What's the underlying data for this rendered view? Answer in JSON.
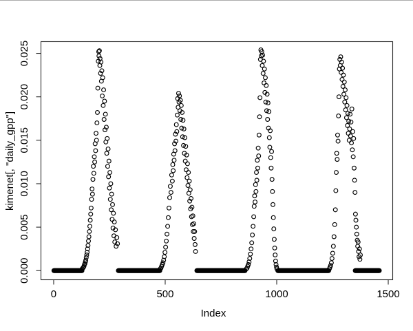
{
  "figure": {
    "background": "#ffffff",
    "top_border_color": "#ababab"
  },
  "chart_data": {
    "type": "scatter",
    "title": "",
    "xlabel": "Index",
    "ylabel": "kimenet[, \"daily_gpp\"]",
    "point_color": "#000000",
    "marker": {
      "shape": "open-circle",
      "radius_px": 2.9,
      "stroke_px": 1.15
    },
    "grid": false,
    "x_range_shown": [
      -57,
      1520
    ],
    "y_range_shown": [
      -0.00105,
      0.02635
    ],
    "x_ticks": {
      "values": [
        0,
        500,
        1000,
        1500
      ],
      "labels": [
        "0",
        "500",
        "1000",
        "1500"
      ]
    },
    "y_ticks": {
      "values": [
        0,
        0.005,
        0.01,
        0.015,
        0.02,
        0.025
      ],
      "labels": [
        "0.000",
        "0.005",
        "0.010",
        "0.015",
        "0.020",
        "0.025"
      ]
    },
    "zero_runs": [
      {
        "x_start": 1,
        "x_end": 128,
        "y": 0,
        "step": 2
      },
      {
        "x_start": 290,
        "x_end": 476,
        "y": 0,
        "step": 2
      },
      {
        "x_start": 642,
        "x_end": 858,
        "y": 0,
        "step": 2
      },
      {
        "x_start": 1005,
        "x_end": 1234,
        "y": 0,
        "step": 2
      },
      {
        "x_start": 1352,
        "x_end": 1461,
        "y": 0,
        "step": 2
      }
    ],
    "points": [
      [
        128,
        0.0002
      ],
      [
        131,
        0.0003
      ],
      [
        134,
        0.0004
      ],
      [
        136,
        0.0005
      ],
      [
        138,
        0.0007
      ],
      [
        140,
        0.0008
      ],
      [
        142,
        0.001
      ],
      [
        144,
        0.0012
      ],
      [
        146,
        0.0015
      ],
      [
        148,
        0.0018
      ],
      [
        150,
        0.0021
      ],
      [
        152,
        0.0025
      ],
      [
        154,
        0.0029
      ],
      [
        156,
        0.0034
      ],
      [
        158,
        0.0039
      ],
      [
        160,
        0.0045
      ],
      [
        162,
        0.0051
      ],
      [
        164,
        0.0058
      ],
      [
        166,
        0.0065
      ],
      [
        168,
        0.0072
      ],
      [
        170,
        0.0082
      ],
      [
        172,
        0.0094
      ],
      [
        174,
        0.0088
      ],
      [
        176,
        0.0105
      ],
      [
        178,
        0.012
      ],
      [
        180,
        0.0112
      ],
      [
        182,
        0.0131
      ],
      [
        184,
        0.0125
      ],
      [
        186,
        0.0146
      ],
      [
        188,
        0.0138
      ],
      [
        190,
        0.0158
      ],
      [
        192,
        0.015
      ],
      [
        194,
        0.017
      ],
      [
        196,
        0.0182
      ],
      [
        198,
        0.021
      ],
      [
        200,
        0.0241
      ],
      [
        202,
        0.0252
      ],
      [
        203,
        0.0247
      ],
      [
        205,
        0.0253
      ],
      [
        207,
        0.0236
      ],
      [
        208,
        0.0244
      ],
      [
        210,
        0.0227
      ],
      [
        212,
        0.024
      ],
      [
        214,
        0.0218
      ],
      [
        216,
        0.023
      ],
      [
        218,
        0.0201
      ],
      [
        220,
        0.0222
      ],
      [
        222,
        0.019
      ],
      [
        224,
        0.0208
      ],
      [
        226,
        0.0174
      ],
      [
        228,
        0.0195
      ],
      [
        230,
        0.0162
      ],
      [
        232,
        0.018
      ],
      [
        234,
        0.0148
      ],
      [
        236,
        0.0165
      ],
      [
        238,
        0.0135
      ],
      [
        240,
        0.0152
      ],
      [
        242,
        0.012
      ],
      [
        244,
        0.014
      ],
      [
        246,
        0.0108
      ],
      [
        248,
        0.0126
      ],
      [
        250,
        0.0095
      ],
      [
        252,
        0.0113
      ],
      [
        254,
        0.0082
      ],
      [
        256,
        0.01
      ],
      [
        258,
        0.007
      ],
      [
        260,
        0.0088
      ],
      [
        262,
        0.0059
      ],
      [
        264,
        0.0076
      ],
      [
        266,
        0.0049
      ],
      [
        268,
        0.0066
      ],
      [
        270,
        0.004
      ],
      [
        272,
        0.0056
      ],
      [
        274,
        0.0033
      ],
      [
        277,
        0.0047
      ],
      [
        280,
        0.0028
      ],
      [
        283,
        0.0038
      ],
      [
        286,
        0.0031
      ],
      [
        478,
        0.0002
      ],
      [
        481,
        0.0003
      ],
      [
        484,
        0.0005
      ],
      [
        487,
        0.0007
      ],
      [
        490,
        0.0009
      ],
      [
        493,
        0.0012
      ],
      [
        496,
        0.0016
      ],
      [
        499,
        0.0021
      ],
      [
        502,
        0.0027
      ],
      [
        505,
        0.0034
      ],
      [
        508,
        0.0042
      ],
      [
        511,
        0.0051
      ],
      [
        514,
        0.0061
      ],
      [
        517,
        0.0072
      ],
      [
        520,
        0.0084
      ],
      [
        523,
        0.0097
      ],
      [
        526,
        0.009
      ],
      [
        529,
        0.011
      ],
      [
        532,
        0.0103
      ],
      [
        534,
        0.0122
      ],
      [
        536,
        0.0115
      ],
      [
        538,
        0.0134
      ],
      [
        540,
        0.0127
      ],
      [
        542,
        0.0146
      ],
      [
        544,
        0.0138
      ],
      [
        546,
        0.0157
      ],
      [
        548,
        0.0149
      ],
      [
        550,
        0.0168
      ],
      [
        552,
        0.016
      ],
      [
        554,
        0.0179
      ],
      [
        556,
        0.0198
      ],
      [
        558,
        0.0188
      ],
      [
        560,
        0.0204
      ],
      [
        562,
        0.0194
      ],
      [
        564,
        0.0201
      ],
      [
        566,
        0.0184
      ],
      [
        568,
        0.0196
      ],
      [
        570,
        0.0174
      ],
      [
        572,
        0.019
      ],
      [
        574,
        0.0164
      ],
      [
        576,
        0.0182
      ],
      [
        578,
        0.0154
      ],
      [
        580,
        0.0173
      ],
      [
        582,
        0.0144
      ],
      [
        584,
        0.0163
      ],
      [
        586,
        0.0135
      ],
      [
        588,
        0.0153
      ],
      [
        590,
        0.0126
      ],
      [
        592,
        0.0143
      ],
      [
        594,
        0.0116
      ],
      [
        596,
        0.0133
      ],
      [
        598,
        0.0107
      ],
      [
        600,
        0.0123
      ],
      [
        602,
        0.0098
      ],
      [
        604,
        0.0113
      ],
      [
        606,
        0.0089
      ],
      [
        608,
        0.0103
      ],
      [
        610,
        0.008
      ],
      [
        612,
        0.0093
      ],
      [
        614,
        0.0071
      ],
      [
        616,
        0.0083
      ],
      [
        618,
        0.0062
      ],
      [
        620,
        0.0073
      ],
      [
        622,
        0.0053
      ],
      [
        624,
        0.0063
      ],
      [
        626,
        0.0045
      ],
      [
        628,
        0.0054
      ],
      [
        630,
        0.0037
      ],
      [
        632,
        0.0045
      ],
      [
        634,
        0.003
      ],
      [
        636,
        0.0022
      ],
      [
        864,
        0.0002
      ],
      [
        867,
        0.0003
      ],
      [
        870,
        0.0005
      ],
      [
        873,
        0.0007
      ],
      [
        876,
        0.001
      ],
      [
        879,
        0.0014
      ],
      [
        882,
        0.0019
      ],
      [
        885,
        0.0025
      ],
      [
        888,
        0.0032
      ],
      [
        891,
        0.0041
      ],
      [
        894,
        0.0051
      ],
      [
        897,
        0.0062
      ],
      [
        899,
        0.0074
      ],
      [
        901,
        0.0086
      ],
      [
        903,
        0.0079
      ],
      [
        905,
        0.0099
      ],
      [
        907,
        0.0091
      ],
      [
        909,
        0.0113
      ],
      [
        911,
        0.0104
      ],
      [
        913,
        0.0127
      ],
      [
        915,
        0.0118
      ],
      [
        917,
        0.0141
      ],
      [
        919,
        0.0132
      ],
      [
        921,
        0.0156
      ],
      [
        923,
        0.0177
      ],
      [
        925,
        0.0199
      ],
      [
        927,
        0.0243
      ],
      [
        929,
        0.0254
      ],
      [
        931,
        0.0247
      ],
      [
        933,
        0.0252
      ],
      [
        935,
        0.0236
      ],
      [
        937,
        0.0248
      ],
      [
        939,
        0.0227
      ],
      [
        941,
        0.0241
      ],
      [
        943,
        0.0216
      ],
      [
        945,
        0.0232
      ],
      [
        947,
        0.0205
      ],
      [
        949,
        0.0222
      ],
      [
        951,
        0.0194
      ],
      [
        953,
        0.0213
      ],
      [
        955,
        0.0184
      ],
      [
        957,
        0.0203
      ],
      [
        959,
        0.0174
      ],
      [
        961,
        0.0193
      ],
      [
        963,
        0.0164
      ],
      [
        965,
        0.0183
      ],
      [
        967,
        0.0153
      ],
      [
        969,
        0.0142
      ],
      [
        971,
        0.0161
      ],
      [
        973,
        0.013
      ],
      [
        975,
        0.0118
      ],
      [
        977,
        0.0137
      ],
      [
        979,
        0.0105
      ],
      [
        981,
        0.0091
      ],
      [
        983,
        0.0076
      ],
      [
        985,
        0.0061
      ],
      [
        987,
        0.0048
      ],
      [
        989,
        0.0036
      ],
      [
        991,
        0.0026
      ],
      [
        993,
        0.0018
      ],
      [
        995,
        0.0011
      ],
      [
        997,
        0.0007
      ],
      [
        999,
        0.0004
      ],
      [
        1001,
        0.0002
      ],
      [
        1236,
        0.0002
      ],
      [
        1239,
        0.0004
      ],
      [
        1242,
        0.0006
      ],
      [
        1245,
        0.0009
      ],
      [
        1248,
        0.0014
      ],
      [
        1251,
        0.002
      ],
      [
        1254,
        0.0028
      ],
      [
        1257,
        0.0039
      ],
      [
        1260,
        0.0053
      ],
      [
        1263,
        0.007
      ],
      [
        1265,
        0.0092
      ],
      [
        1267,
        0.0113
      ],
      [
        1269,
        0.0135
      ],
      [
        1271,
        0.0128
      ],
      [
        1273,
        0.0156
      ],
      [
        1275,
        0.0149
      ],
      [
        1277,
        0.0178
      ],
      [
        1279,
        0.02
      ],
      [
        1281,
        0.0232
      ],
      [
        1283,
        0.0243
      ],
      [
        1285,
        0.0236
      ],
      [
        1287,
        0.0246
      ],
      [
        1289,
        0.0228
      ],
      [
        1291,
        0.024
      ],
      [
        1293,
        0.022
      ],
      [
        1295,
        0.0233
      ],
      [
        1297,
        0.0212
      ],
      [
        1299,
        0.0225
      ],
      [
        1301,
        0.0203
      ],
      [
        1303,
        0.0217
      ],
      [
        1305,
        0.0194
      ],
      [
        1307,
        0.0208
      ],
      [
        1309,
        0.0185
      ],
      [
        1311,
        0.0199
      ],
      [
        1313,
        0.0176
      ],
      [
        1315,
        0.019
      ],
      [
        1317,
        0.0167
      ],
      [
        1319,
        0.0181
      ],
      [
        1321,
        0.0158
      ],
      [
        1323,
        0.0172
      ],
      [
        1325,
        0.015
      ],
      [
        1327,
        0.0163
      ],
      [
        1329,
        0.018
      ],
      [
        1331,
        0.0155
      ],
      [
        1333,
        0.0171
      ],
      [
        1335,
        0.0147
      ],
      [
        1337,
        0.0186
      ],
      [
        1339,
        0.0139
      ],
      [
        1341,
        0.016
      ],
      [
        1343,
        0.0131
      ],
      [
        1345,
        0.0152
      ],
      [
        1347,
        0.0118
      ],
      [
        1349,
        0.0104
      ],
      [
        1351,
        0.009
      ],
      [
        1353,
        0.0065
      ],
      [
        1355,
        0.0058
      ],
      [
        1357,
        0.005
      ],
      [
        1359,
        0.0042
      ],
      [
        1361,
        0.0035
      ],
      [
        1363,
        0.0028
      ],
      [
        1365,
        0.0033
      ],
      [
        1367,
        0.0022
      ],
      [
        1369,
        0.0016
      ],
      [
        1371,
        0.0025
      ],
      [
        1373,
        0.0013
      ],
      [
        1375,
        0.0018
      ]
    ]
  }
}
